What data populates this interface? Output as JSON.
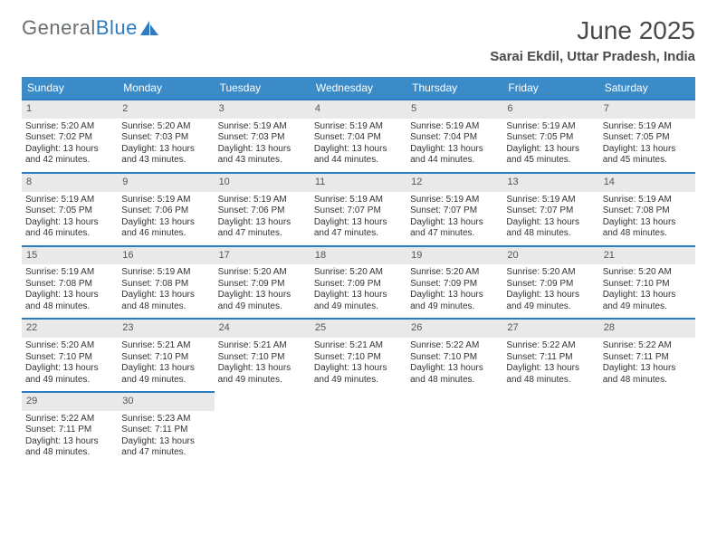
{
  "logo": {
    "part1": "General",
    "part2": "Blue"
  },
  "title": "June 2025",
  "subtitle": "Sarai Ekdil, Uttar Pradesh, India",
  "colors": {
    "header_bg": "#3b8bc9",
    "header_text": "#ffffff",
    "row_border": "#2f7bbf",
    "daynum_bg": "#e9e9e9",
    "text": "#333333",
    "logo_gray": "#6a6f73",
    "logo_blue": "#2f7bbf",
    "page_bg": "#ffffff"
  },
  "typography": {
    "title_fontsize": 28,
    "subtitle_fontsize": 15,
    "dayheader_fontsize": 12,
    "daynum_fontsize": 11,
    "cell_fontsize": 10
  },
  "day_headers": [
    "Sunday",
    "Monday",
    "Tuesday",
    "Wednesday",
    "Thursday",
    "Friday",
    "Saturday"
  ],
  "weeks": [
    [
      {
        "n": "1",
        "sr": "Sunrise: 5:20 AM",
        "ss": "Sunset: 7:02 PM",
        "d1": "Daylight: 13 hours",
        "d2": "and 42 minutes."
      },
      {
        "n": "2",
        "sr": "Sunrise: 5:20 AM",
        "ss": "Sunset: 7:03 PM",
        "d1": "Daylight: 13 hours",
        "d2": "and 43 minutes."
      },
      {
        "n": "3",
        "sr": "Sunrise: 5:19 AM",
        "ss": "Sunset: 7:03 PM",
        "d1": "Daylight: 13 hours",
        "d2": "and 43 minutes."
      },
      {
        "n": "4",
        "sr": "Sunrise: 5:19 AM",
        "ss": "Sunset: 7:04 PM",
        "d1": "Daylight: 13 hours",
        "d2": "and 44 minutes."
      },
      {
        "n": "5",
        "sr": "Sunrise: 5:19 AM",
        "ss": "Sunset: 7:04 PM",
        "d1": "Daylight: 13 hours",
        "d2": "and 44 minutes."
      },
      {
        "n": "6",
        "sr": "Sunrise: 5:19 AM",
        "ss": "Sunset: 7:05 PM",
        "d1": "Daylight: 13 hours",
        "d2": "and 45 minutes."
      },
      {
        "n": "7",
        "sr": "Sunrise: 5:19 AM",
        "ss": "Sunset: 7:05 PM",
        "d1": "Daylight: 13 hours",
        "d2": "and 45 minutes."
      }
    ],
    [
      {
        "n": "8",
        "sr": "Sunrise: 5:19 AM",
        "ss": "Sunset: 7:05 PM",
        "d1": "Daylight: 13 hours",
        "d2": "and 46 minutes."
      },
      {
        "n": "9",
        "sr": "Sunrise: 5:19 AM",
        "ss": "Sunset: 7:06 PM",
        "d1": "Daylight: 13 hours",
        "d2": "and 46 minutes."
      },
      {
        "n": "10",
        "sr": "Sunrise: 5:19 AM",
        "ss": "Sunset: 7:06 PM",
        "d1": "Daylight: 13 hours",
        "d2": "and 47 minutes."
      },
      {
        "n": "11",
        "sr": "Sunrise: 5:19 AM",
        "ss": "Sunset: 7:07 PM",
        "d1": "Daylight: 13 hours",
        "d2": "and 47 minutes."
      },
      {
        "n": "12",
        "sr": "Sunrise: 5:19 AM",
        "ss": "Sunset: 7:07 PM",
        "d1": "Daylight: 13 hours",
        "d2": "and 47 minutes."
      },
      {
        "n": "13",
        "sr": "Sunrise: 5:19 AM",
        "ss": "Sunset: 7:07 PM",
        "d1": "Daylight: 13 hours",
        "d2": "and 48 minutes."
      },
      {
        "n": "14",
        "sr": "Sunrise: 5:19 AM",
        "ss": "Sunset: 7:08 PM",
        "d1": "Daylight: 13 hours",
        "d2": "and 48 minutes."
      }
    ],
    [
      {
        "n": "15",
        "sr": "Sunrise: 5:19 AM",
        "ss": "Sunset: 7:08 PM",
        "d1": "Daylight: 13 hours",
        "d2": "and 48 minutes."
      },
      {
        "n": "16",
        "sr": "Sunrise: 5:19 AM",
        "ss": "Sunset: 7:08 PM",
        "d1": "Daylight: 13 hours",
        "d2": "and 48 minutes."
      },
      {
        "n": "17",
        "sr": "Sunrise: 5:20 AM",
        "ss": "Sunset: 7:09 PM",
        "d1": "Daylight: 13 hours",
        "d2": "and 49 minutes."
      },
      {
        "n": "18",
        "sr": "Sunrise: 5:20 AM",
        "ss": "Sunset: 7:09 PM",
        "d1": "Daylight: 13 hours",
        "d2": "and 49 minutes."
      },
      {
        "n": "19",
        "sr": "Sunrise: 5:20 AM",
        "ss": "Sunset: 7:09 PM",
        "d1": "Daylight: 13 hours",
        "d2": "and 49 minutes."
      },
      {
        "n": "20",
        "sr": "Sunrise: 5:20 AM",
        "ss": "Sunset: 7:09 PM",
        "d1": "Daylight: 13 hours",
        "d2": "and 49 minutes."
      },
      {
        "n": "21",
        "sr": "Sunrise: 5:20 AM",
        "ss": "Sunset: 7:10 PM",
        "d1": "Daylight: 13 hours",
        "d2": "and 49 minutes."
      }
    ],
    [
      {
        "n": "22",
        "sr": "Sunrise: 5:20 AM",
        "ss": "Sunset: 7:10 PM",
        "d1": "Daylight: 13 hours",
        "d2": "and 49 minutes."
      },
      {
        "n": "23",
        "sr": "Sunrise: 5:21 AM",
        "ss": "Sunset: 7:10 PM",
        "d1": "Daylight: 13 hours",
        "d2": "and 49 minutes."
      },
      {
        "n": "24",
        "sr": "Sunrise: 5:21 AM",
        "ss": "Sunset: 7:10 PM",
        "d1": "Daylight: 13 hours",
        "d2": "and 49 minutes."
      },
      {
        "n": "25",
        "sr": "Sunrise: 5:21 AM",
        "ss": "Sunset: 7:10 PM",
        "d1": "Daylight: 13 hours",
        "d2": "and 49 minutes."
      },
      {
        "n": "26",
        "sr": "Sunrise: 5:22 AM",
        "ss": "Sunset: 7:10 PM",
        "d1": "Daylight: 13 hours",
        "d2": "and 48 minutes."
      },
      {
        "n": "27",
        "sr": "Sunrise: 5:22 AM",
        "ss": "Sunset: 7:11 PM",
        "d1": "Daylight: 13 hours",
        "d2": "and 48 minutes."
      },
      {
        "n": "28",
        "sr": "Sunrise: 5:22 AM",
        "ss": "Sunset: 7:11 PM",
        "d1": "Daylight: 13 hours",
        "d2": "and 48 minutes."
      }
    ],
    [
      {
        "n": "29",
        "sr": "Sunrise: 5:22 AM",
        "ss": "Sunset: 7:11 PM",
        "d1": "Daylight: 13 hours",
        "d2": "and 48 minutes."
      },
      {
        "n": "30",
        "sr": "Sunrise: 5:23 AM",
        "ss": "Sunset: 7:11 PM",
        "d1": "Daylight: 13 hours",
        "d2": "and 47 minutes."
      },
      null,
      null,
      null,
      null,
      null
    ]
  ]
}
